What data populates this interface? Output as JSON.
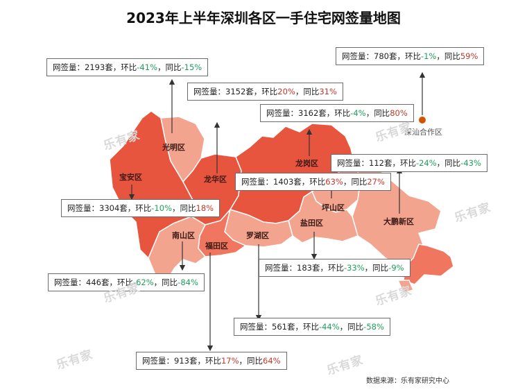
{
  "title": "2023年上半年深圳各区一手住宅网签量地图",
  "source": "数据来源：乐有家研究中心",
  "watermark": "乐有家",
  "labels": {
    "sign": "网签量：",
    "unit": "套",
    "mom": "环比",
    "yoy": "同比",
    "sep": "，"
  },
  "colors": {
    "up": "#c0392b",
    "down": "#1e9e5a",
    "high": "#e8553f",
    "mid": "#f0765f",
    "low": "#f3a48f",
    "lowest": "#f7c2b4"
  },
  "districts": [
    {
      "key": "guangming",
      "name": "光明区",
      "volume": "2193",
      "mom": "-41%",
      "yoy": "-15%"
    },
    {
      "key": "longhua",
      "name": "龙华区",
      "volume": "3152",
      "mom": "20%",
      "yoy": "31%"
    },
    {
      "key": "longgang",
      "name": "龙岗区",
      "volume": "3162",
      "mom": "-4%",
      "yoy": "80%"
    },
    {
      "key": "shenshan",
      "name": "深汕合作区",
      "volume": "780",
      "mom": "-1%",
      "yoy": "59%"
    },
    {
      "key": "dapeng",
      "name": "大鹏新区",
      "volume": "112",
      "mom": "-24%",
      "yoy": "-43%"
    },
    {
      "key": "pingshan",
      "name": "坪山区",
      "volume": "1403",
      "mom": "63%",
      "yoy": "27%"
    },
    {
      "key": "baoan",
      "name": "宝安区",
      "volume": "3304",
      "mom": "-10%",
      "yoy": "18%"
    },
    {
      "key": "yantian",
      "name": "盐田区",
      "volume": "183",
      "mom": "-33%",
      "yoy": "-9%"
    },
    {
      "key": "nanshan",
      "name": "南山区",
      "volume": "446",
      "mom": "-62%",
      "yoy": "-84%"
    },
    {
      "key": "luohu",
      "name": "罗湖区",
      "volume": "561",
      "mom": "-44%",
      "yoy": "-58%"
    },
    {
      "key": "futian",
      "name": "福田区",
      "volume": "913",
      "mom": "17%",
      "yoy": "64%"
    }
  ]
}
